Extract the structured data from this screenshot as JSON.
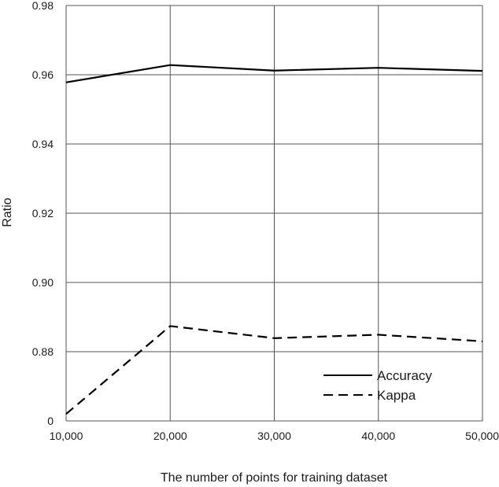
{
  "chart_data": {
    "type": "line",
    "xlabel": "The number of points for training dataset",
    "ylabel": "Ratio",
    "x": [
      10000,
      20000,
      30000,
      40000,
      50000
    ],
    "x_tick_labels": [
      "10,000",
      "20,000",
      "30,000",
      "40,000",
      "50,000"
    ],
    "y_tick_labels": [
      "0",
      "0.88",
      "0.90",
      "0.92",
      "0.94",
      "0.96",
      "0.98"
    ],
    "y_axis_note": "axis break between 0 and 0.88; lowest gridline labeled 0",
    "grid": true,
    "legend_position": "lower-right",
    "series": [
      {
        "name": "Accuracy",
        "style": "solid",
        "color": "#000000",
        "values": [
          0.9578,
          0.9628,
          0.9612,
          0.962,
          0.9611
        ]
      },
      {
        "name": "Kappa",
        "style": "dashed",
        "color": "#000000",
        "values": [
          0.862,
          0.8874,
          0.8839,
          0.8849,
          0.883
        ]
      }
    ]
  }
}
